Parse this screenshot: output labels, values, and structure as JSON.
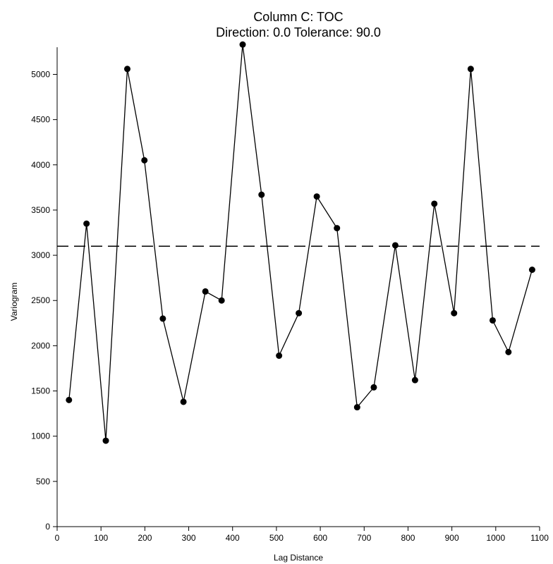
{
  "chart_data": {
    "type": "line",
    "title": "Column C:  TOC",
    "subtitle": "Direction: 0.0   Tolerance: 90.0",
    "xlabel": "Lag Distance",
    "ylabel": "Variogram",
    "xlim": [
      0,
      1100
    ],
    "ylim": [
      0,
      5300
    ],
    "xticks": [
      0,
      100,
      200,
      300,
      400,
      500,
      600,
      700,
      800,
      900,
      1000,
      1100
    ],
    "yticks": [
      0,
      500,
      1000,
      1500,
      2000,
      2500,
      3000,
      3500,
      4000,
      4500,
      5000
    ],
    "grid": false,
    "reference_line": {
      "style": "dashed",
      "y": 3100
    },
    "series": [
      {
        "style": "line-with-markers",
        "color": "#000000",
        "x": [
          27,
          67,
          111,
          160,
          199,
          241,
          288,
          338,
          375,
          423,
          466,
          506,
          551,
          592,
          638,
          684,
          722,
          771,
          816,
          860,
          905,
          943,
          993,
          1029,
          1083
        ],
        "y": [
          1400,
          3350,
          950,
          5060,
          4050,
          2300,
          1380,
          2600,
          2500,
          5330,
          3670,
          1890,
          2360,
          3650,
          3300,
          1320,
          1540,
          3110,
          1620,
          3570,
          2360,
          5060,
          2280,
          1930,
          2840
        ]
      }
    ]
  }
}
